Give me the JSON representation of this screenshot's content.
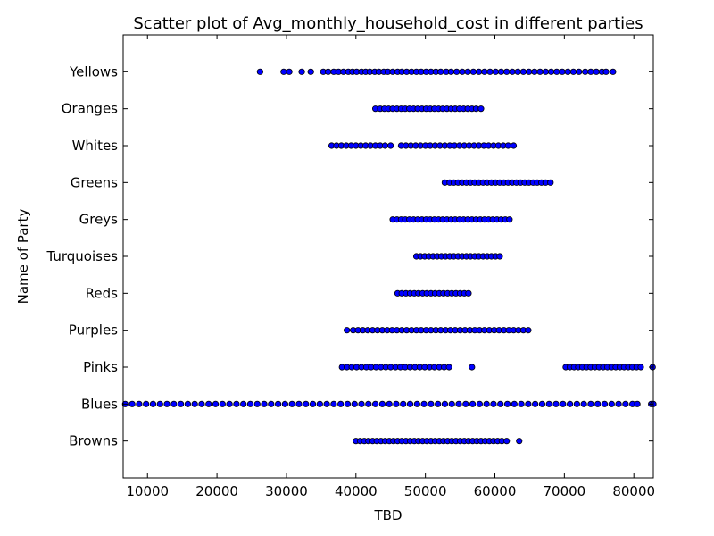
{
  "chart_data": {
    "type": "scatter",
    "title": "Scatter plot of Avg_monthly_household_cost in different parties",
    "xlabel": "TBD",
    "ylabel": "Name of Party",
    "xlim": [
      6500,
      82800
    ],
    "ylim": [
      -1,
      11
    ],
    "xticks": [
      10000,
      20000,
      30000,
      40000,
      50000,
      60000,
      70000,
      80000
    ],
    "categories": [
      "Browns",
      "Blues",
      "Pinks",
      "Purples",
      "Reds",
      "Turquoises",
      "Greys",
      "Greens",
      "Whites",
      "Oranges",
      "Yellows"
    ],
    "point_color": "#0000ff",
    "edge_color": "#000000",
    "grid": false,
    "series": [
      {
        "category": "Yellows",
        "x": [
          26200,
          29600,
          30400,
          32200,
          33500,
          35300,
          36000,
          36800,
          37500,
          38200,
          38900,
          39500,
          40100,
          40800,
          41400,
          42000,
          42700,
          43300,
          44000,
          44600,
          45300,
          46000,
          46600,
          47300,
          48000,
          48700,
          49400,
          50100,
          50800,
          51500,
          52200,
          53000,
          53700,
          54500,
          55300,
          56100,
          56900,
          57700,
          58500,
          59300,
          60100,
          60900,
          61700,
          62500,
          63300,
          64100,
          64900,
          65700,
          66500,
          67300,
          68100,
          68900,
          69700,
          70500,
          71300,
          72100,
          73000,
          73800,
          74600,
          75400,
          76000,
          77000
        ]
      },
      {
        "category": "Oranges",
        "x": [
          42800,
          43500,
          44100,
          44700,
          45300,
          45900,
          46500,
          47100,
          47700,
          48300,
          48900,
          49500,
          50100,
          50700,
          51300,
          51900,
          52500,
          53100,
          53700,
          54300,
          54900,
          55500,
          56100,
          56700,
          57300,
          58000
        ]
      },
      {
        "category": "Whites",
        "x": [
          36500,
          37200,
          37900,
          38600,
          39300,
          40000,
          40700,
          41400,
          42100,
          42800,
          43500,
          44200,
          45000,
          46500,
          47200,
          47900,
          48600,
          49300,
          50000,
          50700,
          51400,
          52100,
          52800,
          53500,
          54200,
          54900,
          55600,
          56300,
          57000,
          57700,
          58400,
          59100,
          59800,
          60500,
          61200,
          61900,
          62700
        ]
      },
      {
        "category": "Greens",
        "x": [
          52800,
          53500,
          54100,
          54700,
          55300,
          55900,
          56500,
          57100,
          57700,
          58300,
          58900,
          59500,
          60100,
          60700,
          61300,
          61900,
          62500,
          63100,
          63700,
          64300,
          64900,
          65500,
          66100,
          66700,
          67300,
          68000
        ]
      },
      {
        "category": "Greys",
        "x": [
          45300,
          45900,
          46500,
          47100,
          47700,
          48300,
          48900,
          49500,
          50100,
          50700,
          51300,
          51900,
          52500,
          53100,
          53700,
          54300,
          54900,
          55500,
          56100,
          56700,
          57300,
          57900,
          58500,
          59100,
          59700,
          60300,
          60900,
          61500,
          62100
        ]
      },
      {
        "category": "Turquoises",
        "x": [
          48700,
          49300,
          49900,
          50500,
          51100,
          51700,
          52300,
          52900,
          53500,
          54100,
          54700,
          55300,
          55900,
          56500,
          57100,
          57700,
          58300,
          58900,
          59500,
          60100,
          60700
        ]
      },
      {
        "category": "Reds",
        "x": [
          46000,
          46600,
          47200,
          47800,
          48400,
          49000,
          49600,
          50200,
          50800,
          51400,
          52000,
          52600,
          53200,
          53800,
          54400,
          55000,
          55600,
          56200
        ]
      },
      {
        "category": "Purples",
        "x": [
          38700,
          39600,
          40300,
          41000,
          41700,
          42400,
          43100,
          43800,
          44500,
          45200,
          45900,
          46600,
          47300,
          48000,
          48700,
          49400,
          50100,
          50800,
          51500,
          52200,
          52900,
          53600,
          54300,
          55000,
          55700,
          56400,
          57100,
          57800,
          58500,
          59200,
          59900,
          60600,
          61300,
          62000,
          62700,
          63400,
          64100,
          64800
        ]
      },
      {
        "category": "Pinks",
        "x": [
          38000,
          38700,
          39400,
          40100,
          40800,
          41500,
          42200,
          42900,
          43600,
          44300,
          45000,
          45700,
          46400,
          47100,
          47800,
          48500,
          49200,
          49900,
          50600,
          51300,
          52000,
          52700,
          53400,
          56700,
          70200,
          70800,
          71400,
          72000,
          72600,
          73200,
          73800,
          74400,
          75000,
          75600,
          76200,
          76800,
          77400,
          78000,
          78600,
          79200,
          79800,
          80400,
          81000,
          82700
        ]
      },
      {
        "category": "Blues",
        "x": [
          6800,
          7800,
          8800,
          9800,
          10800,
          11800,
          12800,
          13800,
          14800,
          15800,
          16800,
          17800,
          18800,
          19800,
          20800,
          21800,
          22800,
          23800,
          24800,
          25800,
          26800,
          27800,
          28800,
          29800,
          30800,
          31800,
          32800,
          33800,
          34800,
          35800,
          36800,
          37800,
          38800,
          39800,
          40800,
          41800,
          42800,
          43800,
          44800,
          45800,
          46800,
          47800,
          48800,
          49800,
          50800,
          51800,
          52800,
          53800,
          54800,
          55800,
          56800,
          57800,
          58800,
          59800,
          60800,
          61800,
          62800,
          63800,
          64800,
          65800,
          66800,
          67800,
          68800,
          69800,
          70800,
          71800,
          72800,
          73800,
          74800,
          75800,
          76800,
          77800,
          78800,
          79800,
          80500,
          82500,
          82800
        ]
      },
      {
        "category": "Browns",
        "x": [
          40000,
          40600,
          41200,
          41800,
          42400,
          43000,
          43600,
          44200,
          44800,
          45400,
          46000,
          46600,
          47200,
          47800,
          48400,
          49000,
          49600,
          50200,
          50800,
          51400,
          52000,
          52600,
          53200,
          53800,
          54400,
          55000,
          55600,
          56200,
          56800,
          57400,
          58000,
          58600,
          59200,
          59800,
          60400,
          61000,
          61700,
          63500
        ]
      }
    ]
  }
}
